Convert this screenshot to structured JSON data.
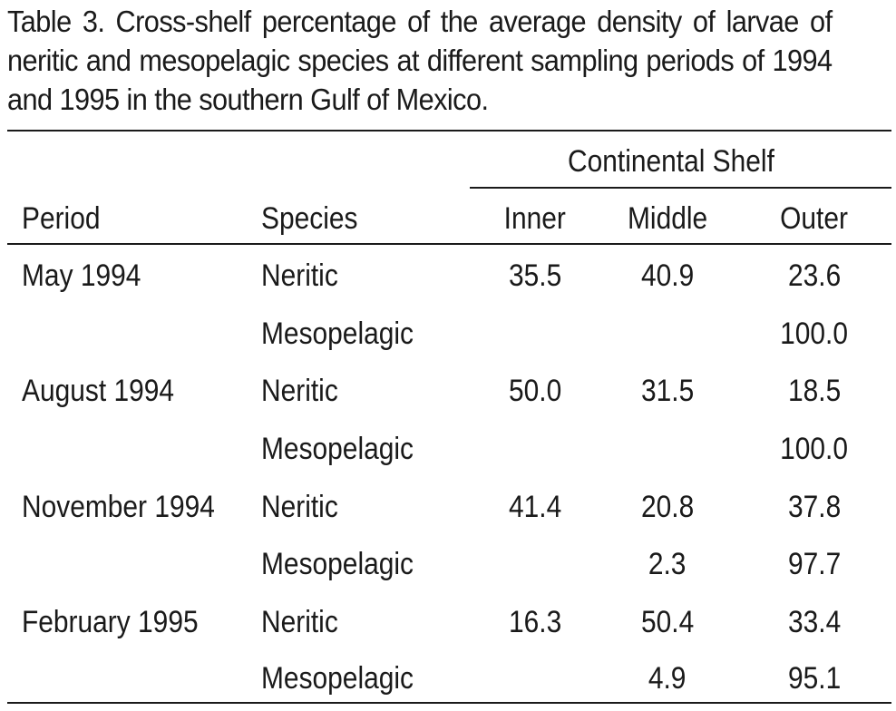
{
  "caption": "Table 3. Cross-shelf percentage of the average density of larvae of neritic and mesopelagic species at different sampling periods of 1994 and 1995 in the southern Gulf of Mexico.",
  "table": {
    "group_header": "Continental Shelf",
    "columns": [
      "Period",
      "Species",
      "Inner",
      "Middle",
      "Outer"
    ],
    "rows": [
      {
        "period": "May 1994",
        "species": "Neritic",
        "inner": "35.5",
        "middle": "40.9",
        "outer": "23.6"
      },
      {
        "period": "",
        "species": "Mesopelagic",
        "inner": "",
        "middle": "",
        "outer": "100.0"
      },
      {
        "period": "August 1994",
        "species": "Neritic",
        "inner": "50.0",
        "middle": "31.5",
        "outer": "18.5"
      },
      {
        "period": "",
        "species": "Mesopelagic",
        "inner": "",
        "middle": "",
        "outer": "100.0"
      },
      {
        "period": "November 1994",
        "species": "Neritic",
        "inner": "41.4",
        "middle": "20.8",
        "outer": "37.8"
      },
      {
        "period": "",
        "species": "Mesopelagic",
        "inner": "",
        "middle": "2.3",
        "outer": "97.7"
      },
      {
        "period": "February 1995",
        "species": "Neritic",
        "inner": "16.3",
        "middle": "50.4",
        "outer": "33.4"
      },
      {
        "period": "",
        "species": "Mesopelagic",
        "inner": "",
        "middle": "4.9",
        "outer": "95.1"
      }
    ]
  }
}
